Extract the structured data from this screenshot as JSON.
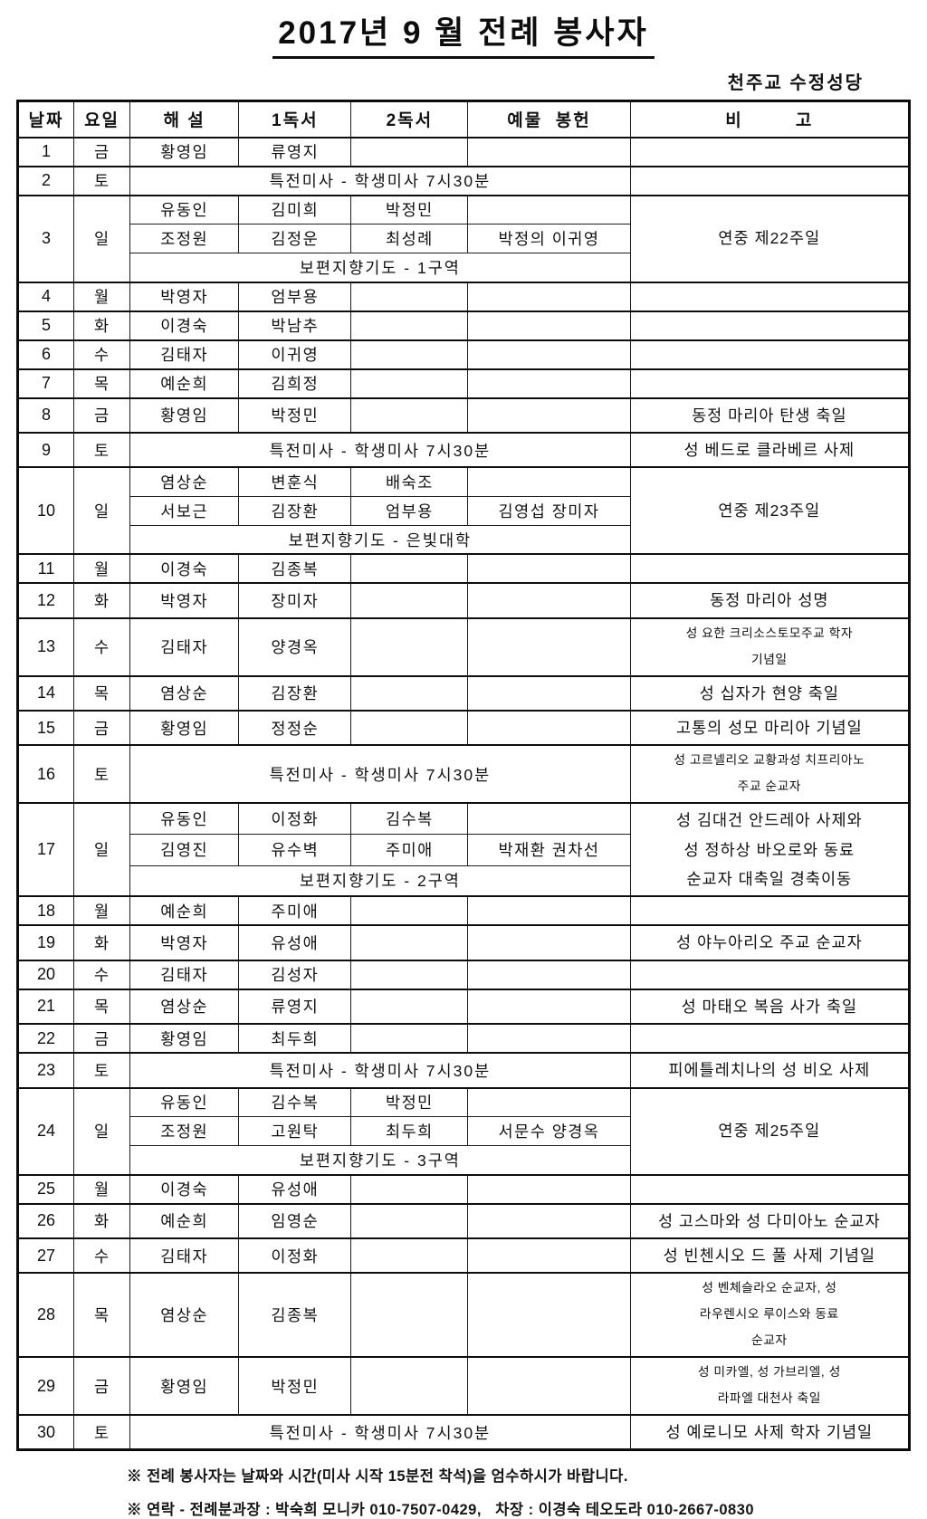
{
  "page": {
    "title": "2017년 9 월 전례 봉사자",
    "org": "천주교 수정성당"
  },
  "table": {
    "headers": [
      "날짜",
      "요일",
      "해 설",
      "1독서",
      "2독서",
      "예물  봉헌",
      "비        고"
    ],
    "rows": [
      {
        "type": "normal",
        "date": "1",
        "day": "금",
        "commentator": "황영임",
        "reading1": "류영지",
        "reading2": "",
        "offering": "",
        "bigo": ""
      },
      {
        "type": "saturday",
        "date": "2",
        "day": "토",
        "special": "특전미사 - 학생미사 7시30분",
        "bigo": ""
      },
      {
        "type": "sunday",
        "date": "3",
        "day": "일",
        "sub1": [
          "유동인",
          "김미희",
          "박정민",
          ""
        ],
        "sub2": [
          "조정원",
          "김정운",
          "최성례",
          "박정의  이귀영"
        ],
        "sub3": "보편지향기도 - 1구역",
        "bigo": "연중 제22주일"
      },
      {
        "type": "normal",
        "date": "4",
        "day": "월",
        "commentator": "박영자",
        "reading1": "엄부용",
        "reading2": "",
        "offering": "",
        "bigo": ""
      },
      {
        "type": "normal",
        "date": "5",
        "day": "화",
        "commentator": "이경숙",
        "reading1": "박남추",
        "reading2": "",
        "offering": "",
        "bigo": ""
      },
      {
        "type": "normal",
        "date": "6",
        "day": "수",
        "commentator": "김태자",
        "reading1": "이귀영",
        "reading2": "",
        "offering": "",
        "bigo": ""
      },
      {
        "type": "normal",
        "date": "7",
        "day": "목",
        "commentator": "예순희",
        "reading1": "김희정",
        "reading2": "",
        "offering": "",
        "bigo": ""
      },
      {
        "type": "normal",
        "date": "8",
        "day": "금",
        "commentator": "황영임",
        "reading1": "박정민",
        "reading2": "",
        "offering": "",
        "bigo": "동정 마리아 탄생 축일"
      },
      {
        "type": "saturday",
        "date": "9",
        "day": "토",
        "special": "특전미사 - 학생미사 7시30분",
        "bigo": "성 베드로 클라베르 사제"
      },
      {
        "type": "sunday",
        "date": "10",
        "day": "일",
        "sub1": [
          "염상순",
          "변훈식",
          "배숙조",
          ""
        ],
        "sub2": [
          "서보근",
          "김장환",
          "엄부용",
          "김영섭  장미자"
        ],
        "sub3": "보편지향기도 - 은빛대학",
        "bigo": "연중 제23주일"
      },
      {
        "type": "normal",
        "date": "11",
        "day": "월",
        "commentator": "이경숙",
        "reading1": "김종복",
        "reading2": "",
        "offering": "",
        "bigo": ""
      },
      {
        "type": "normal",
        "date": "12",
        "day": "화",
        "commentator": "박영자",
        "reading1": "장미자",
        "reading2": "",
        "offering": "",
        "bigo": "동정 마리아 성명"
      },
      {
        "type": "normal",
        "date": "13",
        "day": "수",
        "commentator": "김태자",
        "reading1": "양경옥",
        "reading2": "",
        "offering": "",
        "bigo": "성 요한 크리소스토모주교 학자\n기념일"
      },
      {
        "type": "normal",
        "date": "14",
        "day": "목",
        "commentator": "염상순",
        "reading1": "김장환",
        "reading2": "",
        "offering": "",
        "bigo": "성 십자가 현양 축일"
      },
      {
        "type": "normal",
        "date": "15",
        "day": "금",
        "commentator": "황영임",
        "reading1": "정정순",
        "reading2": "",
        "offering": "",
        "bigo": "고통의 성모 마리아 기념일"
      },
      {
        "type": "saturday",
        "date": "16",
        "day": "토",
        "special": "특전미사 - 학생미사 7시30분",
        "bigo": "성 고르넬리오 교황과성 치프리아노\n주교 순교자"
      },
      {
        "type": "sunday",
        "date": "17",
        "day": "일",
        "sub1": [
          "유동인",
          "이정화",
          "김수복",
          ""
        ],
        "sub2": [
          "김영진",
          "유수벽",
          "주미애",
          "박재환  권차선"
        ],
        "sub3": "보편지향기도 - 2구역",
        "bigo": "성 김대건 안드레아 사제와\n성 정하상 바오로와 동료\n순교자 대축일 경축이동"
      },
      {
        "type": "normal",
        "date": "18",
        "day": "월",
        "commentator": "예순희",
        "reading1": "주미애",
        "reading2": "",
        "offering": "",
        "bigo": ""
      },
      {
        "type": "normal",
        "date": "19",
        "day": "화",
        "commentator": "박영자",
        "reading1": "유성애",
        "reading2": "",
        "offering": "",
        "bigo": "성 야누아리오 주교 순교자"
      },
      {
        "type": "normal",
        "date": "20",
        "day": "수",
        "commentator": "김태자",
        "reading1": "김성자",
        "reading2": "",
        "offering": "",
        "bigo": ""
      },
      {
        "type": "normal",
        "date": "21",
        "day": "목",
        "commentator": "염상순",
        "reading1": "류영지",
        "reading2": "",
        "offering": "",
        "bigo": "성 마태오 복음 사가 축일"
      },
      {
        "type": "normal",
        "date": "22",
        "day": "금",
        "commentator": "황영임",
        "reading1": "최두희",
        "reading2": "",
        "offering": "",
        "bigo": ""
      },
      {
        "type": "saturday",
        "date": "23",
        "day": "토",
        "special": "특전미사 - 학생미사 7시30분",
        "bigo": "피에틀레치나의 성 비오 사제"
      },
      {
        "type": "sunday",
        "date": "24",
        "day": "일",
        "sub1": [
          "유동인",
          "김수복",
          "박정민",
          ""
        ],
        "sub2": [
          "조정원",
          "고원탁",
          "최두희",
          "서문수  양경옥"
        ],
        "sub3": "보편지향기도 - 3구역",
        "bigo": "연중 제25주일"
      },
      {
        "type": "normal",
        "date": "25",
        "day": "월",
        "commentator": "이경숙",
        "reading1": "유성애",
        "reading2": "",
        "offering": "",
        "bigo": ""
      },
      {
        "type": "normal",
        "date": "26",
        "day": "화",
        "commentator": "예순희",
        "reading1": "임영순",
        "reading2": "",
        "offering": "",
        "bigo": "성 고스마와 성 다미아노 순교자"
      },
      {
        "type": "normal",
        "date": "27",
        "day": "수",
        "commentator": "김태자",
        "reading1": "이정화",
        "reading2": "",
        "offering": "",
        "bigo": "성 빈첸시오 드 풀 사제 기념일"
      },
      {
        "type": "normal",
        "date": "28",
        "day": "목",
        "commentator": "염상순",
        "reading1": "김종복",
        "reading2": "",
        "offering": "",
        "bigo": "성 벤체슬라오 순교자, 성\n라우렌시오 루이스와 동료\n순교자"
      },
      {
        "type": "normal",
        "date": "29",
        "day": "금",
        "commentator": "황영임",
        "reading1": "박정민",
        "reading2": "",
        "offering": "",
        "bigo": "성 미카엘, 성 가브리엘, 성\n라파엘 대천사 축일"
      },
      {
        "type": "saturday",
        "date": "30",
        "day": "토",
        "special": "특전미사 - 학생미사 7시30분",
        "bigo": "성 예로니모 사제 학자 기념일"
      }
    ]
  },
  "footer": {
    "note1": "※ 전례 봉사자는 날짜와 시간(미사 시작 15분전 착석)을 엄수하시가 바랍니다.",
    "note2": "※ 연락 - 전례분과장 : 박숙희 모니카 010-7507-0429,   차장 : 이경숙 테오도라 010-2667-0830"
  }
}
